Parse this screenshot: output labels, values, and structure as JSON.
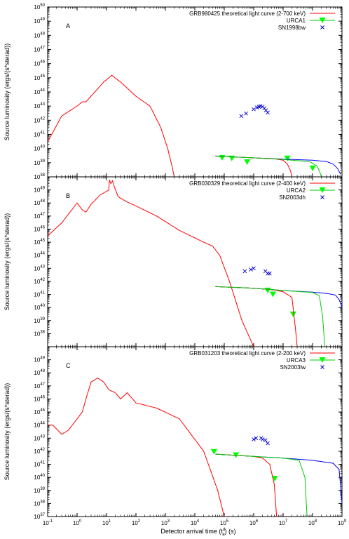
{
  "figure": {
    "xlabel_main": "Detector arrival time (t",
    "xlabel_sup": "d",
    "xlabel_sub": "a",
    "xlabel_tail": ") (s)",
    "ylabel": "Source luminosity (ergs/(s*sterad))"
  },
  "colors": {
    "theory": "#ff0000",
    "green": "#00cc00",
    "blue": "#0000ff",
    "cross": "#0000cc",
    "marker": "#00ff00"
  },
  "chart_data": [
    {
      "type": "line",
      "panel_letter": "A",
      "xscale": "log",
      "yscale": "log",
      "xlim": [
        0.1,
        1000000000
      ],
      "ylim": [
        1e+38,
        1e+50
      ],
      "yticks": [
        "10^38",
        "10^39",
        "10^40",
        "10^41",
        "10^42",
        "10^43",
        "10^44",
        "10^45",
        "10^46",
        "10^47",
        "10^48",
        "10^49",
        "10^50"
      ],
      "legend": [
        "GRB980425 theoretical light curve (2-700 keV)",
        "URCA1",
        "SN1998bw"
      ],
      "legend_position": "top-right",
      "series": [
        {
          "name": "GRB980425 theoretical light curve (2-700 keV)",
          "style": "theory",
          "x": [
            0.1,
            0.3,
            1,
            1.5,
            2,
            4,
            8,
            15,
            30,
            100,
            300,
            700,
            1200,
            1700,
            2000
          ],
          "y": [
            3e+40,
            2e+42,
            1e+43,
            2e+43,
            2e+43,
            1e+44,
            5e+44,
            1.5e+45,
            5e+44,
            5e+43,
            1e+43,
            3e+41,
            1e+40,
            5e+38,
            1e+38
          ]
        },
        {
          "name": "URCA1",
          "style": "marker-tri",
          "x": [
            85000,
            180000,
            600000,
            14000000,
            100000000
          ],
          "y": [
            2.2e+39,
            2e+39,
            1.1e+39,
            2e+39,
            4e+38
          ]
        },
        {
          "name": "SN1998bw",
          "style": "cross",
          "x": [
            380000,
            550000,
            1000000,
            1300000,
            1500000,
            1700000,
            2000000,
            2300000,
            2600000,
            3000000
          ],
          "y": [
            2e+42,
            3e+42,
            6e+42,
            8e+42,
            9e+42,
            1e+43,
            9e+42,
            7e+42,
            5e+42,
            3.5e+42
          ]
        },
        {
          "name": "",
          "style": "blue-curve",
          "x": [
            50000,
            1000000,
            10000000,
            100000000,
            300000000,
            500000000,
            700000000,
            900000000
          ],
          "y": [
            3e+39,
            2.2e+39,
            1.8e+39,
            1.5e+39,
            1.2e+39,
            8e+38,
            4e+38,
            1.5e+38
          ]
        },
        {
          "name": "",
          "style": "red-curve",
          "x": [
            50000,
            1000000,
            5000000,
            10000000,
            14000000,
            18000000,
            20000000
          ],
          "y": [
            2.9e+39,
            2.2e+39,
            1.9e+39,
            1.5e+39,
            8e+38,
            2.5e+38,
            1e+38
          ]
        },
        {
          "name": "",
          "style": "green-curve",
          "x": [
            50000,
            1000000,
            10000000,
            80000000,
            140000000,
            180000000,
            200000000
          ],
          "y": [
            2.9e+39,
            2.2e+39,
            1.7e+39,
            1.2e+39,
            6e+38,
            2e+38,
            1e+38
          ]
        }
      ]
    },
    {
      "type": "line",
      "panel_letter": "B",
      "xscale": "log",
      "yscale": "log",
      "xlim": [
        0.1,
        1000000000
      ],
      "ylim": [
        1e+37,
        1e+50
      ],
      "yticks": [
        "10^38",
        "10^39",
        "10^40",
        "10^41",
        "10^42",
        "10^43",
        "10^44",
        "10^45",
        "10^46",
        "10^47",
        "10^48",
        "10^49"
      ],
      "legend": [
        "GRB030329 theoretical light curve (2-400 keV)",
        "URCA2",
        "SN2003dh"
      ],
      "legend_position": "top-right",
      "series": [
        {
          "name": "GRB030329 theoretical light curve (2-400 keV)",
          "style": "theory",
          "x": [
            0.1,
            0.3,
            1,
            1.5,
            2,
            3,
            6,
            12,
            12.5,
            14,
            16,
            18,
            25,
            50,
            100,
            500,
            3000,
            20000,
            40000,
            70000,
            150000,
            400000,
            1000000
          ],
          "y": [
            3e+45,
            3e+46,
            1e+48,
            3e+47,
            2e+47,
            8e+47,
            4e+48,
            1e+49,
            6e+49,
            3e+49,
            5e+49,
            2e+49,
            3e+48,
            1.2e+48,
            6e+47,
            1e+47,
            8e+45,
            1e+45,
            5e+44,
            1e+44,
            1e+42,
            1e+39,
            1e+37
          ]
        },
        {
          "name": "URCA2",
          "style": "marker-tri",
          "x": [
            3000000,
            4500000,
            22000000
          ],
          "y": [
            2e+41,
            1e+41,
            3e+39
          ]
        },
        {
          "name": "SN2003dh",
          "style": "cross",
          "x": [
            500000,
            800000,
            1000000,
            2500000,
            3000000,
            3500000
          ],
          "y": [
            6e+42,
            8e+42,
            1e+43,
            6e+42,
            4e+42,
            4e+42
          ]
        },
        {
          "name": "",
          "style": "blue-curve",
          "x": [
            50000,
            1000000,
            10000000,
            100000000,
            300000000,
            600000000,
            800000000,
            1000000000
          ],
          "y": [
            4e+41,
            3e+41,
            2e+41,
            1.5e+41,
            1.2e+41,
            9e+40,
            4e+40,
            1e+40
          ]
        },
        {
          "name": "",
          "style": "red-curve",
          "x": [
            50000,
            1000000,
            5000000,
            10000000,
            20000000,
            26000000,
            30000000
          ],
          "y": [
            4e+41,
            3e+41,
            2.2e+41,
            1.6e+41,
            6e+40,
            3e+38,
            1e+37
          ]
        },
        {
          "name": "",
          "style": "green-curve",
          "x": [
            50000,
            1000000,
            10000000,
            100000000,
            170000000,
            220000000,
            260000000
          ],
          "y": [
            4e+41,
            3e+41,
            2e+41,
            1.4e+41,
            8e+40,
            2e+39,
            1e+37
          ]
        }
      ]
    },
    {
      "type": "line",
      "panel_letter": "C",
      "xscale": "log",
      "yscale": "log",
      "xlim": [
        0.1,
        1000000000
      ],
      "ylim": [
        1e+37,
        1e+50
      ],
      "yticks": [
        "10^37",
        "10^38",
        "10^39",
        "10^40",
        "10^41",
        "10^42",
        "10^43",
        "10^44",
        "10^45",
        "10^46",
        "10^47",
        "10^48",
        "10^49"
      ],
      "xticks": [
        "10^-1",
        "10^0",
        "10^1",
        "10^2",
        "10^3",
        "10^4",
        "10^5",
        "10^6",
        "10^7",
        "10^8",
        "10^9"
      ],
      "legend": [
        "GRB031203 theoretical light curve (2-200 keV)",
        "URCA3",
        "SN2003lw"
      ],
      "legend_position": "top-right",
      "series": [
        {
          "name": "GRB031203 theoretical light curve (2-200 keV)",
          "style": "theory",
          "x": [
            0.1,
            0.15,
            0.3,
            0.5,
            1,
            1.5,
            2,
            3,
            5,
            8,
            12,
            20,
            30,
            50,
            100,
            500,
            3000,
            20000,
            60000,
            100000
          ],
          "y": [
            1e+44,
            1e+44,
            2e+43,
            4e+43,
            3e+44,
            1e+45,
            1e+46,
            2e+47,
            4e+47,
            2e+47,
            5e+46,
            3e+46,
            1e+46,
            3e+46,
            5e+45,
            2e+45,
            3e+44,
            1e+42,
            1e+39,
            1e+37
          ]
        },
        {
          "name": "URCA3",
          "style": "marker-tri",
          "x": [
            45000,
            250000,
            5200000
          ],
          "y": [
            9e+41,
            5e+41,
            8e+39
          ]
        },
        {
          "name": "SN2003lw",
          "style": "cross",
          "x": [
            1000000,
            1200000,
            1800000,
            2000000,
            2500000,
            3000000
          ],
          "y": [
            8e+42,
            1e+43,
            1e+43,
            8e+42,
            7e+42,
            4e+42
          ]
        },
        {
          "name": "",
          "style": "blue-curve",
          "x": [
            50000,
            1000000,
            10000000,
            100000000,
            500000000,
            800000000,
            1000000000
          ],
          "y": [
            6e+41,
            4e+41,
            3e+41,
            2e+41,
            1.2e+41,
            4e+40,
            1e+38
          ]
        },
        {
          "name": "",
          "style": "red-curve",
          "x": [
            50000,
            1000000,
            2000000,
            3500000,
            5000000,
            6000000
          ],
          "y": [
            6e+41,
            4e+41,
            3e+41,
            1e+41,
            3e+39,
            1e+37
          ]
        },
        {
          "name": "",
          "style": "green-curve",
          "x": [
            50000,
            1000000,
            10000000,
            35000000,
            55000000,
            65000000
          ],
          "y": [
            6e+41,
            4e+41,
            3e+41,
            2e+41,
            1e+40,
            1e+37
          ]
        }
      ]
    }
  ]
}
